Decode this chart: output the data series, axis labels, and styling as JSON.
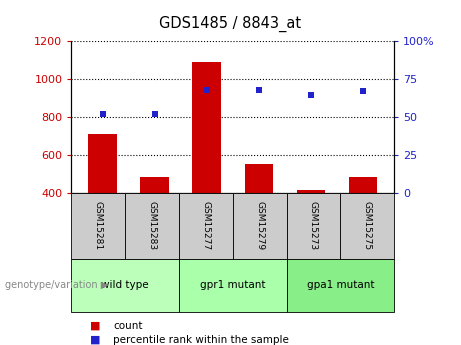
{
  "title": "GDS1485 / 8843_at",
  "samples": [
    "GSM15281",
    "GSM15283",
    "GSM15277",
    "GSM15279",
    "GSM15273",
    "GSM15275"
  ],
  "bar_values": [
    710,
    487,
    1092,
    556,
    418,
    483
  ],
  "percentile_values": [
    52,
    52,
    68,
    68,
    65,
    67
  ],
  "ylim_left": [
    400,
    1200
  ],
  "ylim_right": [
    0,
    100
  ],
  "yticks_left": [
    400,
    600,
    800,
    1000,
    1200
  ],
  "yticks_right": [
    0,
    25,
    50,
    75,
    100
  ],
  "bar_color": "#cc0000",
  "dot_color": "#2222cc",
  "sample_box_color": "#cccccc",
  "group_labels": [
    "wild type",
    "gpr1 mutant",
    "gpa1 mutant"
  ],
  "group_colors": [
    "#bbffbb",
    "#aaffaa",
    "#88ee88"
  ],
  "group_boundaries": [
    0,
    2,
    4,
    6
  ],
  "genotype_label": "genotype/variation",
  "legend_count": "count",
  "legend_pct": "percentile rank within the sample"
}
